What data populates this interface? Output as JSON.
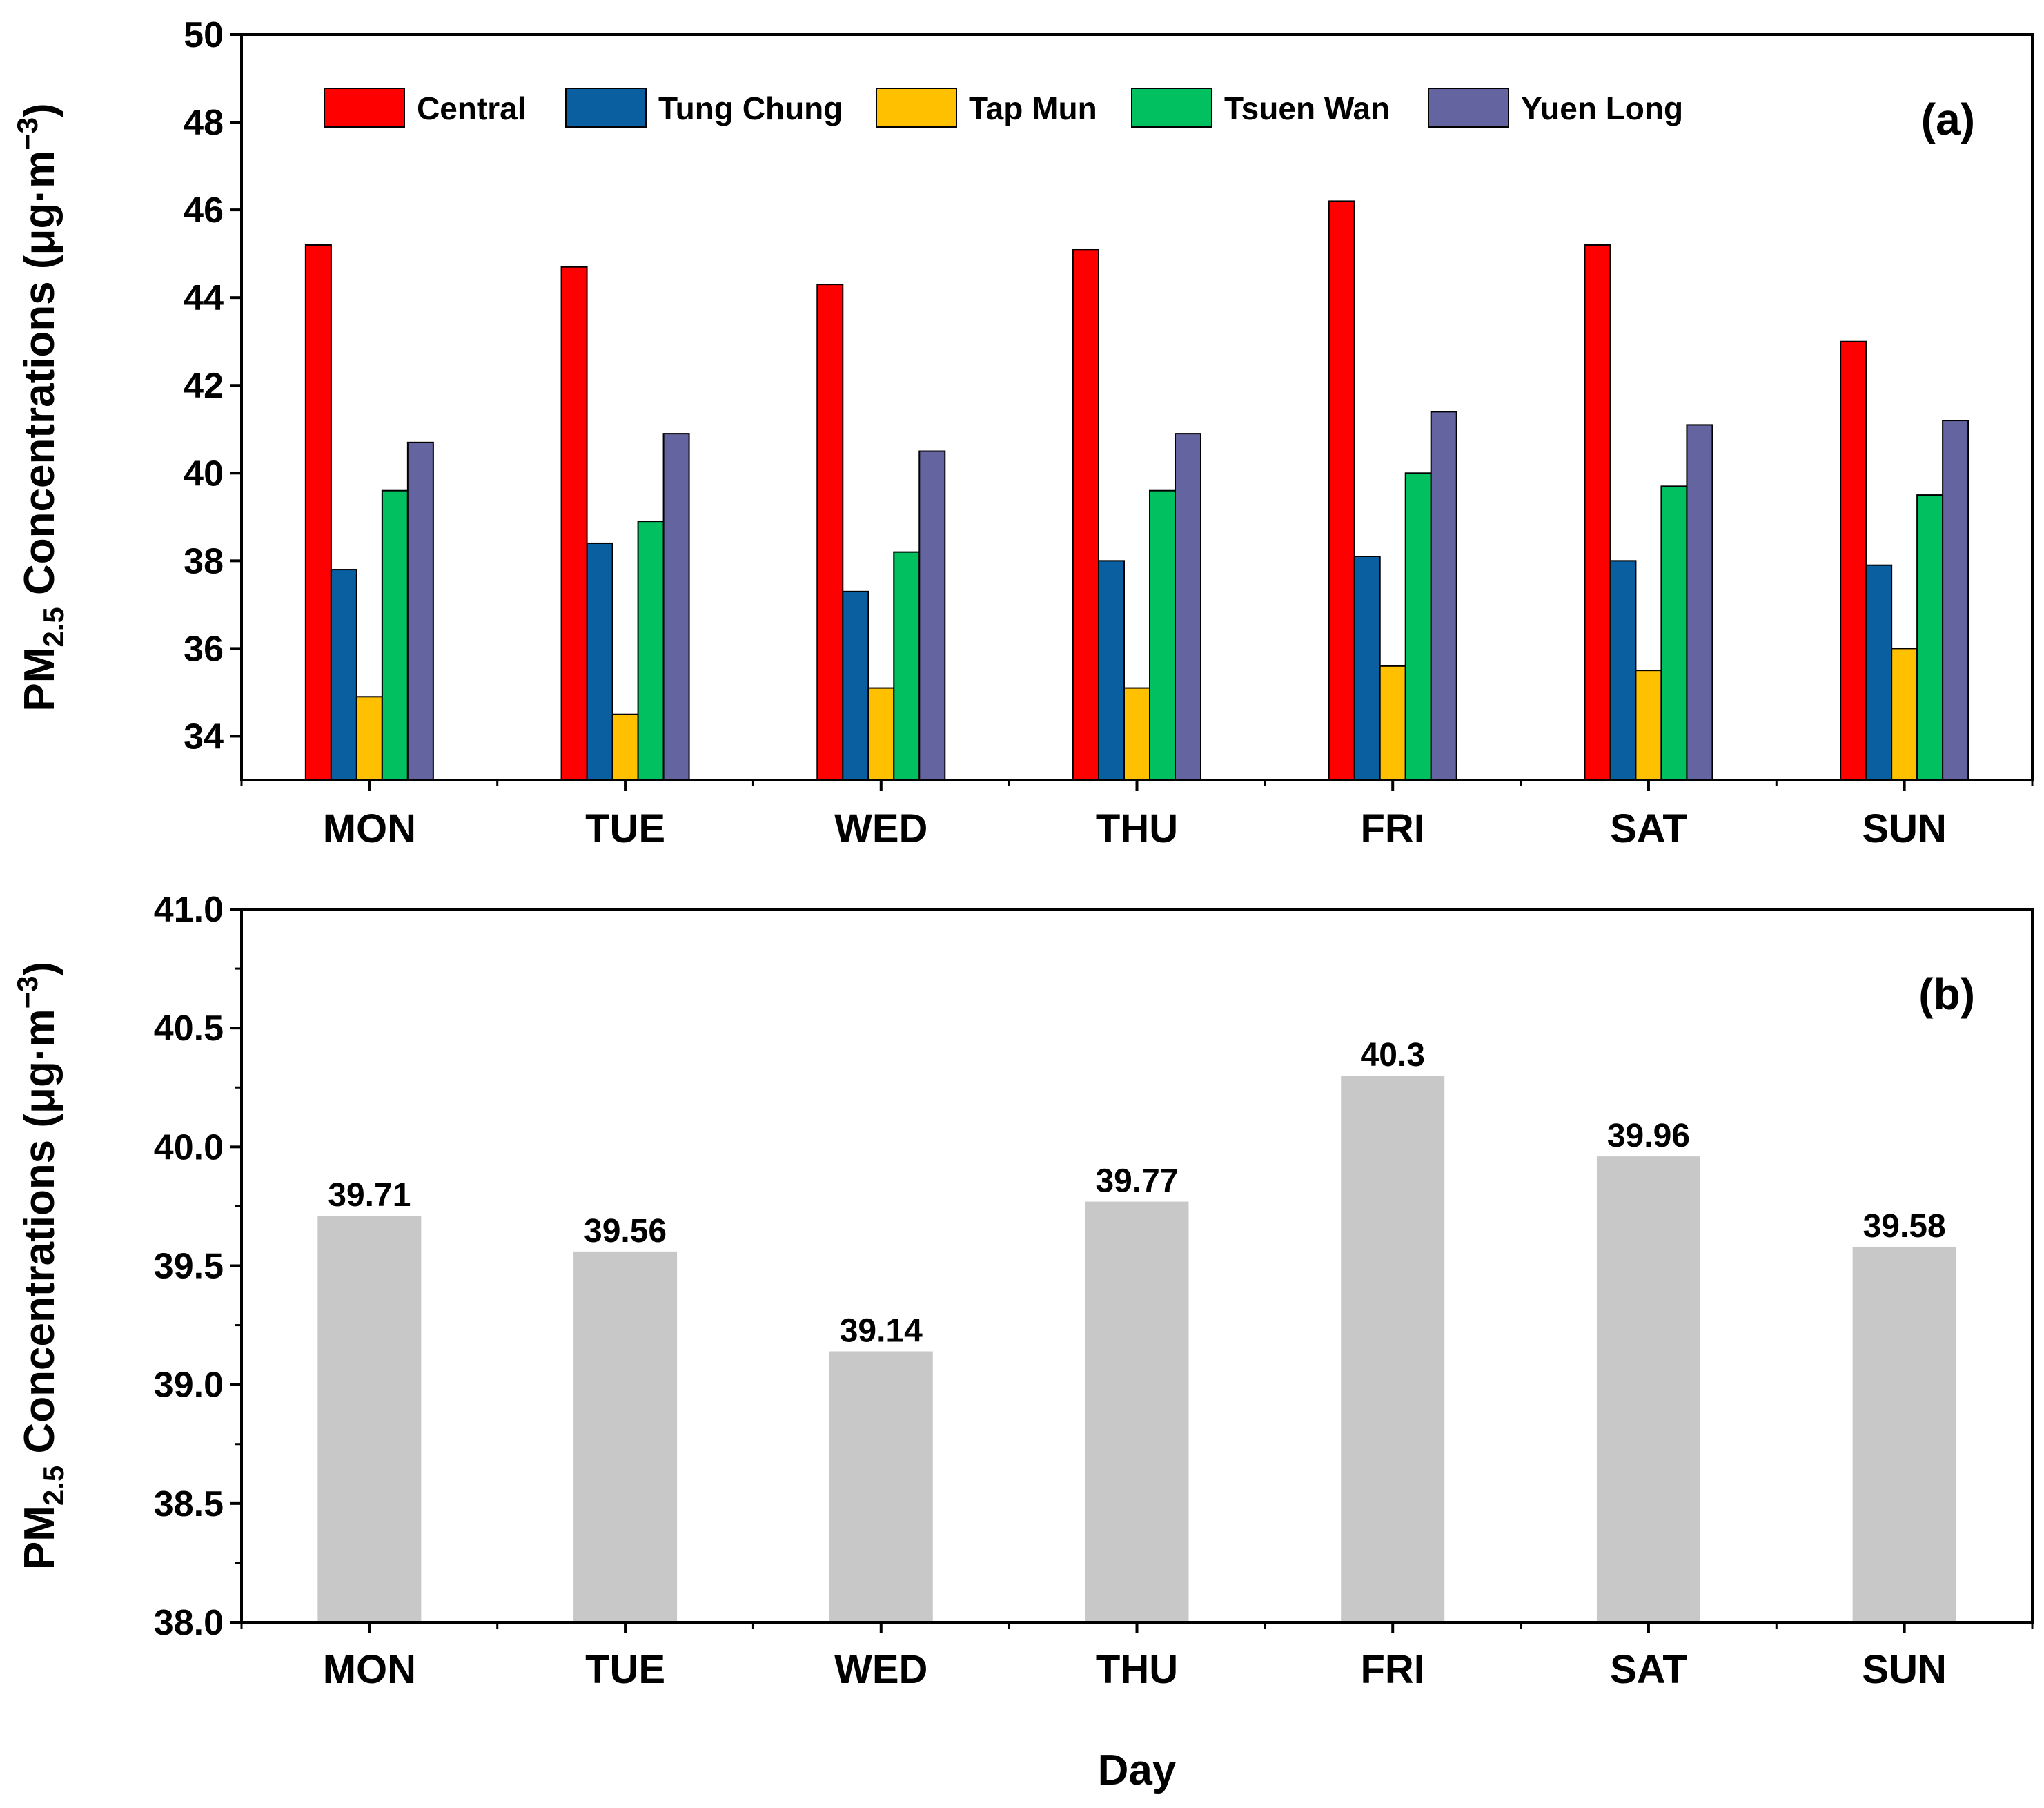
{
  "chart_data": [
    {
      "type": "bar",
      "panel_label": "(a)",
      "categories": [
        "MON",
        "TUE",
        "WED",
        "THU",
        "FRI",
        "SAT",
        "SUN"
      ],
      "series": [
        {
          "name": "Central",
          "color": "#ff0000",
          "values": [
            45.2,
            44.7,
            44.3,
            45.1,
            46.2,
            45.2,
            43.0
          ]
        },
        {
          "name": "Tung Chung",
          "color": "#0a5fa0",
          "values": [
            37.8,
            38.4,
            37.3,
            38.0,
            38.1,
            38.0,
            37.9
          ]
        },
        {
          "name": "Tap Mun",
          "color": "#ffc000",
          "values": [
            34.9,
            34.5,
            35.1,
            35.1,
            35.6,
            35.5,
            36.0
          ]
        },
        {
          "name": "Tsuen Wan",
          "color": "#00c060",
          "values": [
            39.6,
            38.9,
            38.2,
            39.6,
            40.0,
            39.7,
            39.5
          ]
        },
        {
          "name": "Yuen Long",
          "color": "#6464a0",
          "values": [
            40.7,
            40.9,
            40.5,
            40.9,
            41.4,
            41.1,
            41.2
          ]
        }
      ],
      "ylim": [
        33,
        50
      ],
      "yticks": [
        "34",
        "36",
        "38",
        "40",
        "42",
        "44",
        "46",
        "48",
        "50"
      ],
      "ylabel": {
        "main": "PM",
        "sub": "2.5",
        "rest": " Concentrations (μg·m",
        "sup": "−3",
        "close": ")"
      },
      "legend": "top"
    },
    {
      "type": "bar",
      "panel_label": "(b)",
      "categories": [
        "MON",
        "TUE",
        "WED",
        "THU",
        "FRI",
        "SAT",
        "SUN"
      ],
      "values": [
        39.71,
        39.56,
        39.14,
        39.77,
        40.3,
        39.96,
        39.58
      ],
      "value_labels": [
        "39.71",
        "39.56",
        "39.14",
        "39.77",
        "40.3",
        "39.96",
        "39.58"
      ],
      "bar_color": "#c8c8c8",
      "ylim": [
        38.0,
        41.0
      ],
      "yticks": [
        "38.0",
        "38.5",
        "39.0",
        "39.5",
        "40.0",
        "40.5",
        "41.0"
      ],
      "ylabel": {
        "main": "PM",
        "sub": "2.5",
        "rest": " Concentrations (μg·m",
        "sup": "−3",
        "close": ")"
      },
      "xlabel": "Day"
    }
  ]
}
